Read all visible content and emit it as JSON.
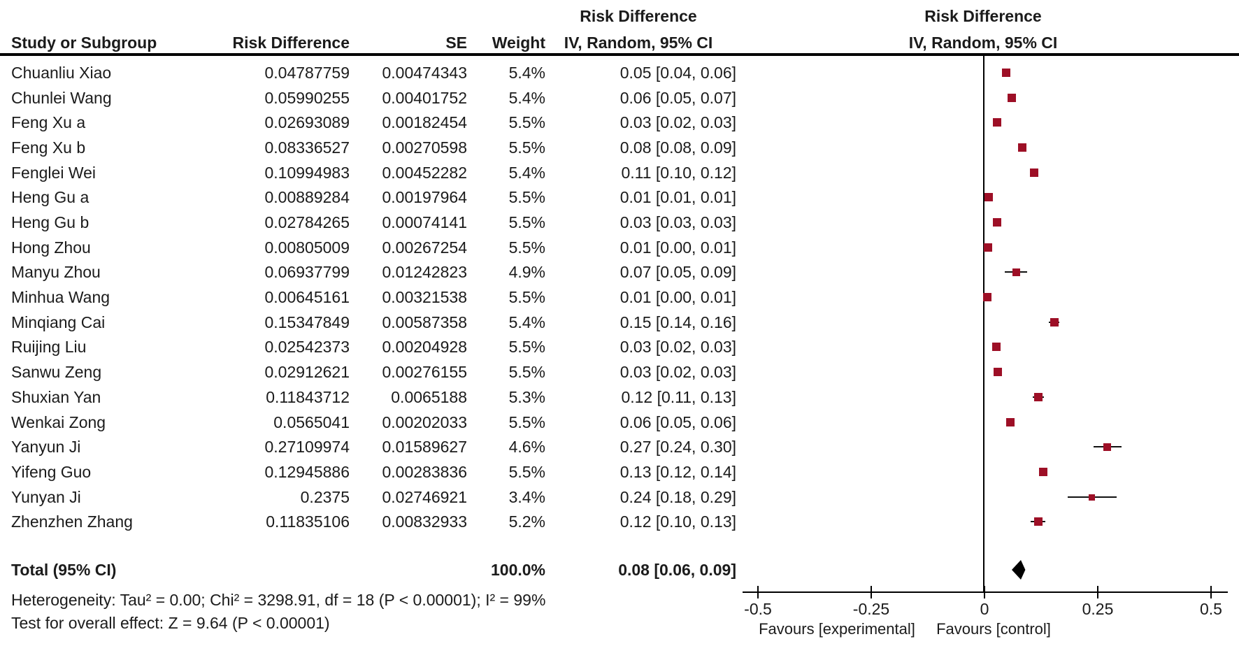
{
  "header": {
    "col_study": "Study or Subgroup",
    "col_rd": "Risk Difference",
    "col_se": "SE",
    "col_weight": "Weight",
    "ci_line1": "Risk Difference",
    "ci_line2": "IV, Random, 95% CI",
    "plot_line1": "Risk Difference",
    "plot_line2": "IV, Random, 95% CI"
  },
  "total_row": {
    "label": "Total (95% CI)",
    "weight_text": "100.0%",
    "ci_text": "0.08 [0.06, 0.09]"
  },
  "footer": {
    "heterogeneity": "Heterogeneity: Tau² = 0.00; Chi² = 3298.91, df = 18 (P < 0.00001); I² = 99%",
    "overall_effect": "Test for overall effect: Z = 9.64 (P < 0.00001)"
  },
  "plot": {
    "favours_left": "Favours [experimental]",
    "favours_right": "Favours [control]",
    "marker_color": "#9d0f26",
    "line_color": "#000000",
    "diamond_color": "#000000"
  },
  "chart_data": {
    "type": "scatter",
    "variant": "forest_plot",
    "effect_measure": "Risk Difference",
    "model": "IV, Random, 95% CI",
    "xlim": [
      -0.5,
      0.5
    ],
    "x_ticks": [
      -0.5,
      -0.25,
      0,
      0.25,
      0.5
    ],
    "x_tick_labels": [
      "-0.5",
      "-0.25",
      "0",
      "0.25",
      "0.5"
    ],
    "x_axis_caption_left": "Favours [experimental]",
    "x_axis_caption_right": "Favours [control]",
    "studies": [
      {
        "name": "Chuanliu Xiao",
        "rd_text": "0.04787759",
        "se_text": "0.00474343",
        "weight_text": "5.4%",
        "ci_text": "0.05 [0.04, 0.06]",
        "rd": 0.04787759,
        "se": 0.00474343,
        "weight_pct": 5.4
      },
      {
        "name": "Chunlei Wang",
        "rd_text": "0.05990255",
        "se_text": "0.00401752",
        "weight_text": "5.4%",
        "ci_text": "0.06 [0.05, 0.07]",
        "rd": 0.05990255,
        "se": 0.00401752,
        "weight_pct": 5.4
      },
      {
        "name": "Feng Xu a",
        "rd_text": "0.02693089",
        "se_text": "0.00182454",
        "weight_text": "5.5%",
        "ci_text": "0.03 [0.02, 0.03]",
        "rd": 0.02693089,
        "se": 0.00182454,
        "weight_pct": 5.5
      },
      {
        "name": "Feng Xu b",
        "rd_text": "0.08336527",
        "se_text": "0.00270598",
        "weight_text": "5.5%",
        "ci_text": "0.08 [0.08, 0.09]",
        "rd": 0.08336527,
        "se": 0.00270598,
        "weight_pct": 5.5
      },
      {
        "name": "Fenglei Wei",
        "rd_text": "0.10994983",
        "se_text": "0.00452282",
        "weight_text": "5.4%",
        "ci_text": "0.11 [0.10, 0.12]",
        "rd": 0.10994983,
        "se": 0.00452282,
        "weight_pct": 5.4
      },
      {
        "name": "Heng Gu a",
        "rd_text": "0.00889284",
        "se_text": "0.00197964",
        "weight_text": "5.5%",
        "ci_text": "0.01 [0.01, 0.01]",
        "rd": 0.00889284,
        "se": 0.00197964,
        "weight_pct": 5.5
      },
      {
        "name": "Heng Gu b",
        "rd_text": "0.02784265",
        "se_text": "0.00074141",
        "weight_text": "5.5%",
        "ci_text": "0.03 [0.03, 0.03]",
        "rd": 0.02784265,
        "se": 0.00074141,
        "weight_pct": 5.5
      },
      {
        "name": "Hong Zhou",
        "rd_text": "0.00805009",
        "se_text": "0.00267254",
        "weight_text": "5.5%",
        "ci_text": "0.01 [0.00, 0.01]",
        "rd": 0.00805009,
        "se": 0.00267254,
        "weight_pct": 5.5
      },
      {
        "name": "Manyu Zhou",
        "rd_text": "0.06937799",
        "se_text": "0.01242823",
        "weight_text": "4.9%",
        "ci_text": "0.07 [0.05, 0.09]",
        "rd": 0.06937799,
        "se": 0.01242823,
        "weight_pct": 4.9
      },
      {
        "name": "Minhua Wang",
        "rd_text": "0.00645161",
        "se_text": "0.00321538",
        "weight_text": "5.5%",
        "ci_text": "0.01 [0.00, 0.01]",
        "rd": 0.00645161,
        "se": 0.00321538,
        "weight_pct": 5.5
      },
      {
        "name": "Minqiang Cai",
        "rd_text": "0.15347849",
        "se_text": "0.00587358",
        "weight_text": "5.4%",
        "ci_text": "0.15 [0.14, 0.16]",
        "rd": 0.15347849,
        "se": 0.00587358,
        "weight_pct": 5.4
      },
      {
        "name": "Ruijing Liu",
        "rd_text": "0.02542373",
        "se_text": "0.00204928",
        "weight_text": "5.5%",
        "ci_text": "0.03 [0.02, 0.03]",
        "rd": 0.02542373,
        "se": 0.00204928,
        "weight_pct": 5.5
      },
      {
        "name": "Sanwu Zeng",
        "rd_text": "0.02912621",
        "se_text": "0.00276155",
        "weight_text": "5.5%",
        "ci_text": "0.03 [0.02, 0.03]",
        "rd": 0.02912621,
        "se": 0.00276155,
        "weight_pct": 5.5
      },
      {
        "name": "Shuxian Yan",
        "rd_text": "0.11843712",
        "se_text": "0.0065188",
        "weight_text": "5.3%",
        "ci_text": "0.12 [0.11, 0.13]",
        "rd": 0.11843712,
        "se": 0.0065188,
        "weight_pct": 5.3
      },
      {
        "name": "Wenkai Zong",
        "rd_text": "0.0565041",
        "se_text": "0.00202033",
        "weight_text": "5.5%",
        "ci_text": "0.06 [0.05, 0.06]",
        "rd": 0.0565041,
        "se": 0.00202033,
        "weight_pct": 5.5
      },
      {
        "name": "Yanyun Ji",
        "rd_text": "0.27109974",
        "se_text": "0.01589627",
        "weight_text": "4.6%",
        "ci_text": "0.27 [0.24, 0.30]",
        "rd": 0.27109974,
        "se": 0.01589627,
        "weight_pct": 4.6
      },
      {
        "name": "Yifeng Guo",
        "rd_text": "0.12945886",
        "se_text": "0.00283836",
        "weight_text": "5.5%",
        "ci_text": "0.13 [0.12, 0.14]",
        "rd": 0.12945886,
        "se": 0.00283836,
        "weight_pct": 5.5
      },
      {
        "name": "Yunyan Ji",
        "rd_text": "0.2375",
        "se_text": "0.02746921",
        "weight_text": "3.4%",
        "ci_text": "0.24 [0.18, 0.29]",
        "rd": 0.2375,
        "se": 0.02746921,
        "weight_pct": 3.4
      },
      {
        "name": "Zhenzhen Zhang",
        "rd_text": "0.11835106",
        "se_text": "0.00832933",
        "weight_text": "5.2%",
        "ci_text": "0.12 [0.10, 0.13]",
        "rd": 0.11835106,
        "se": 0.00832933,
        "weight_pct": 5.2
      }
    ],
    "total": {
      "label": "Total (95% CI)",
      "estimate": 0.08,
      "ci_low": 0.06,
      "ci_high": 0.09,
      "weight_pct": 100.0,
      "heterogeneity": {
        "tau2": 0.0,
        "chi2": 3298.91,
        "df": 18,
        "p": "< 0.00001",
        "i2_pct": 99
      },
      "overall_effect": {
        "z": 9.64,
        "p": "< 0.00001"
      }
    }
  }
}
